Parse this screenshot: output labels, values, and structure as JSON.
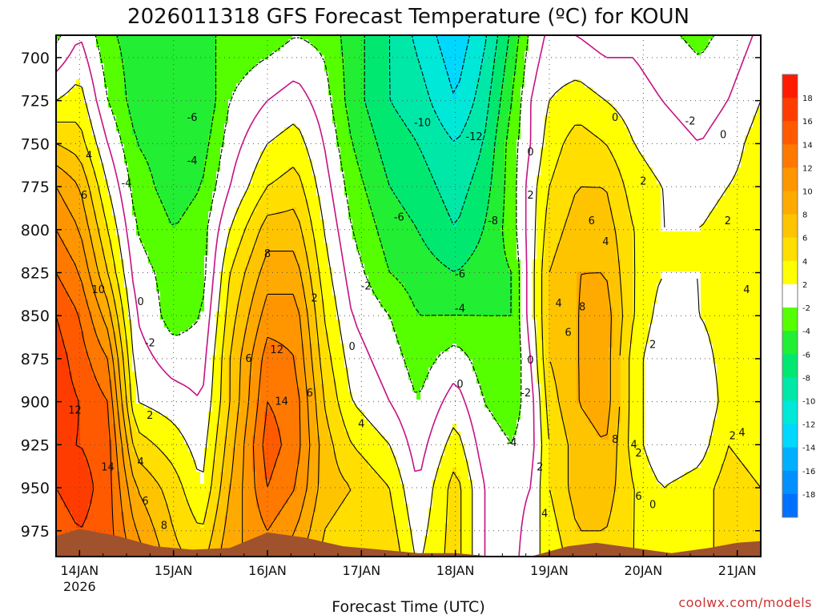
{
  "chart_data": {
    "type": "heatmap",
    "title": "2026011318 GFS Forecast Temperature (ºC) for KOUN",
    "xlabel": "Forecast Time (UTC)",
    "ylabel": "",
    "credit": "coolwx.com/models",
    "y_axis": {
      "ticks": [
        700,
        725,
        750,
        775,
        800,
        825,
        850,
        875,
        900,
        925,
        950,
        975
      ],
      "range": [
        687,
        990
      ],
      "unit": "hPa"
    },
    "x_axis": {
      "range_days": [
        -0.25,
        7.25
      ],
      "ticks": [
        {
          "day": 0,
          "label": "14JAN",
          "sublabel": "2026"
        },
        {
          "day": 1,
          "label": "15JAN",
          "sublabel": ""
        },
        {
          "day": 2,
          "label": "16JAN",
          "sublabel": ""
        },
        {
          "day": 3,
          "label": "17JAN",
          "sublabel": ""
        },
        {
          "day": 4,
          "label": "18JAN",
          "sublabel": ""
        },
        {
          "day": 5,
          "label": "19JAN",
          "sublabel": ""
        },
        {
          "day": 6,
          "label": "20JAN",
          "sublabel": ""
        },
        {
          "day": 7,
          "label": "21JAN",
          "sublabel": ""
        }
      ]
    },
    "colorbar": {
      "labels": [
        "18",
        "16",
        "14",
        "12",
        "10",
        "8",
        "6",
        "4",
        "2",
        "-2",
        "-4",
        "-6",
        "-8",
        "-10",
        "-12",
        "-14",
        "-16",
        "-18"
      ],
      "bins": [
        {
          "lo": 18,
          "hi": 20,
          "color": "#ff1a00"
        },
        {
          "lo": 16,
          "hi": 18,
          "color": "#ff3c00"
        },
        {
          "lo": 14,
          "hi": 16,
          "color": "#ff5a00"
        },
        {
          "lo": 12,
          "hi": 14,
          "color": "#ff7800"
        },
        {
          "lo": 10,
          "hi": 12,
          "color": "#ff9600"
        },
        {
          "lo": 8,
          "hi": 10,
          "color": "#ffaa00"
        },
        {
          "lo": 6,
          "hi": 8,
          "color": "#ffc400"
        },
        {
          "lo": 4,
          "hi": 6,
          "color": "#ffde00"
        },
        {
          "lo": 2,
          "hi": 4,
          "color": "#ffff00"
        },
        {
          "lo": -2,
          "hi": 2,
          "color": "#ffffff"
        },
        {
          "lo": -4,
          "hi": -2,
          "color": "#55ff00"
        },
        {
          "lo": -6,
          "hi": -4,
          "color": "#22ee33"
        },
        {
          "lo": -8,
          "hi": -6,
          "color": "#00e870"
        },
        {
          "lo": -10,
          "hi": -8,
          "color": "#00e8a8"
        },
        {
          "lo": -12,
          "hi": -10,
          "color": "#00e8d8"
        },
        {
          "lo": -14,
          "hi": -12,
          "color": "#00d8ff"
        },
        {
          "lo": -16,
          "hi": -14,
          "color": "#00b0ff"
        },
        {
          "lo": -18,
          "hi": -16,
          "color": "#0090ff"
        },
        {
          "lo": -20,
          "hi": -18,
          "color": "#0070ff"
        }
      ]
    },
    "surface_color": "#a0522d",
    "positive_contour_color": "#000000",
    "zero_contour_color": "#c71585",
    "negative_contour_color": "#000000",
    "surface_pressure": [
      {
        "day": -0.25,
        "p": 978
      },
      {
        "day": 0.0,
        "p": 974
      },
      {
        "day": 0.4,
        "p": 978
      },
      {
        "day": 0.8,
        "p": 984
      },
      {
        "day": 1.2,
        "p": 986
      },
      {
        "day": 1.6,
        "p": 985
      },
      {
        "day": 2.0,
        "p": 976
      },
      {
        "day": 2.4,
        "p": 979
      },
      {
        "day": 2.8,
        "p": 984
      },
      {
        "day": 3.2,
        "p": 986
      },
      {
        "day": 3.6,
        "p": 988
      },
      {
        "day": 4.0,
        "p": 988
      },
      {
        "day": 4.4,
        "p": 990
      },
      {
        "day": 4.8,
        "p": 990
      },
      {
        "day": 5.2,
        "p": 984
      },
      {
        "day": 5.5,
        "p": 982
      },
      {
        "day": 5.9,
        "p": 985
      },
      {
        "day": 6.3,
        "p": 988
      },
      {
        "day": 6.7,
        "p": 985
      },
      {
        "day": 7.0,
        "p": 982
      },
      {
        "day": 7.25,
        "p": 981
      }
    ],
    "profiles": [
      {
        "day": -0.25,
        "t": [
          -1,
          2,
          6,
          10,
          12,
          14,
          16,
          17,
          17,
          16,
          16,
          15
        ]
      },
      {
        "day": 0.0,
        "t": [
          1,
          3,
          5,
          8,
          10,
          12,
          14,
          15,
          16,
          16,
          17,
          16
        ]
      },
      {
        "day": 0.3,
        "t": [
          -3,
          -2,
          0,
          2,
          4,
          6,
          9,
          12,
          14,
          15,
          15,
          15
        ]
      },
      {
        "day": 0.6,
        "t": [
          -5,
          -5,
          -4,
          -3,
          -2,
          -1,
          0,
          1,
          2,
          5,
          8,
          10
        ]
      },
      {
        "day": 1.0,
        "t": [
          -6,
          -6,
          -5,
          -5,
          -4,
          -3,
          -3,
          -1,
          1,
          3,
          5,
          6
        ]
      },
      {
        "day": 1.3,
        "t": [
          -5,
          -6,
          -5,
          -4,
          -3,
          -3,
          -2,
          -1,
          0,
          1,
          2,
          4
        ]
      },
      {
        "day": 1.6,
        "t": [
          -3,
          -2,
          -1,
          0,
          2,
          4,
          5,
          6,
          6,
          7,
          8,
          9
        ]
      },
      {
        "day": 2.0,
        "t": [
          -2,
          0,
          2,
          4,
          7,
          9,
          11,
          13,
          14,
          15,
          14,
          12
        ]
      },
      {
        "day": 2.3,
        "t": [
          -1,
          1,
          3,
          5,
          7,
          9,
          11,
          12,
          13,
          13,
          12,
          10
        ]
      },
      {
        "day": 2.6,
        "t": [
          -2,
          -1,
          0,
          1,
          2,
          3,
          4,
          5,
          6,
          7,
          7,
          6
        ]
      },
      {
        "day": 2.9,
        "t": [
          -5,
          -5,
          -4,
          -3,
          -2,
          -1,
          0,
          1,
          2,
          4,
          6,
          5
        ]
      },
      {
        "day": 3.3,
        "t": [
          -8,
          -8,
          -7,
          -6,
          -5,
          -4,
          -2,
          -1,
          0,
          2,
          4,
          5
        ]
      },
      {
        "day": 3.6,
        "t": [
          -10,
          -9,
          -8,
          -7,
          -6,
          -5,
          -4,
          -3,
          -2,
          -1,
          0,
          1
        ]
      },
      {
        "day": 4.0,
        "t": [
          -13,
          -12,
          -10,
          -9,
          -8,
          -6,
          -4,
          -1,
          1,
          3,
          5,
          5
        ]
      },
      {
        "day": 4.3,
        "t": [
          -10,
          -9,
          -8,
          -7,
          -6,
          -5,
          -4,
          -3,
          -2,
          -1,
          0,
          0
        ]
      },
      {
        "day": 4.6,
        "t": [
          -5,
          -4,
          -3,
          -3,
          -3,
          -4,
          -4,
          -4,
          -3,
          -2,
          -1,
          -1
        ]
      },
      {
        "day": 4.8,
        "t": [
          -1,
          0,
          0,
          1,
          1,
          1,
          1,
          0,
          -1,
          -1,
          0,
          1
        ]
      },
      {
        "day": 5.0,
        "t": [
          1,
          2,
          3,
          4,
          5,
          6,
          6,
          6,
          5,
          4,
          4,
          3
        ]
      },
      {
        "day": 5.3,
        "t": [
          1,
          3,
          5,
          6,
          7,
          8,
          8,
          8,
          8,
          7,
          7,
          6
        ]
      },
      {
        "day": 5.6,
        "t": [
          0,
          2,
          4,
          6,
          7,
          8,
          9,
          9,
          9,
          8,
          7,
          6
        ]
      },
      {
        "day": 5.9,
        "t": [
          0,
          1,
          2,
          3,
          4,
          4,
          4,
          3,
          3,
          3,
          4,
          4
        ]
      },
      {
        "day": 6.2,
        "t": [
          -1,
          0,
          1,
          2,
          2,
          2,
          1,
          0,
          0,
          0,
          2,
          2
        ]
      },
      {
        "day": 6.6,
        "t": [
          -2,
          -1,
          0,
          1,
          2,
          2,
          2,
          1,
          0,
          1,
          3,
          3
        ]
      },
      {
        "day": 6.9,
        "t": [
          -1,
          0,
          1,
          2,
          3,
          3,
          3,
          3,
          3,
          4,
          5,
          5
        ]
      },
      {
        "day": 7.25,
        "t": [
          1,
          2,
          3,
          3,
          3,
          4,
          4,
          4,
          3,
          3,
          4,
          5
        ]
      }
    ],
    "contour_labels": [
      {
        "day": -0.05,
        "p": 905,
        "text": "12"
      },
      {
        "day": 0.3,
        "p": 938,
        "text": "14"
      },
      {
        "day": 0.05,
        "p": 780,
        "text": "6"
      },
      {
        "day": 0.2,
        "p": 835,
        "text": "10"
      },
      {
        "day": 0.1,
        "p": 757,
        "text": "4"
      },
      {
        "day": 0.65,
        "p": 842,
        "text": "0"
      },
      {
        "day": 0.75,
        "p": 866,
        "text": "-2"
      },
      {
        "day": 0.5,
        "p": 773,
        "text": "-4"
      },
      {
        "day": 1.2,
        "p": 760,
        "text": "-4"
      },
      {
        "day": 1.2,
        "p": 735,
        "text": "-6"
      },
      {
        "day": 0.75,
        "p": 908,
        "text": "2"
      },
      {
        "day": 0.65,
        "p": 935,
        "text": "4"
      },
      {
        "day": 0.7,
        "p": 958,
        "text": "6"
      },
      {
        "day": 0.9,
        "p": 972,
        "text": "8"
      },
      {
        "day": 2.0,
        "p": 814,
        "text": "8"
      },
      {
        "day": 2.1,
        "p": 870,
        "text": "12"
      },
      {
        "day": 2.15,
        "p": 900,
        "text": "14"
      },
      {
        "day": 1.8,
        "p": 875,
        "text": "6"
      },
      {
        "day": 2.5,
        "p": 840,
        "text": "2"
      },
      {
        "day": 2.45,
        "p": 895,
        "text": "6"
      },
      {
        "day": 2.9,
        "p": 868,
        "text": "0"
      },
      {
        "day": 3.0,
        "p": 913,
        "text": "4"
      },
      {
        "day": 3.05,
        "p": 833,
        "text": "-2"
      },
      {
        "day": 3.4,
        "p": 793,
        "text": "-6"
      },
      {
        "day": 3.65,
        "p": 738,
        "text": "-10"
      },
      {
        "day": 4.2,
        "p": 746,
        "text": "-12"
      },
      {
        "day": 4.4,
        "p": 795,
        "text": "-8"
      },
      {
        "day": 4.05,
        "p": 826,
        "text": "-6"
      },
      {
        "day": 4.05,
        "p": 846,
        "text": "-4"
      },
      {
        "day": 4.05,
        "p": 890,
        "text": "0"
      },
      {
        "day": 4.75,
        "p": 895,
        "text": "-2"
      },
      {
        "day": 4.6,
        "p": 924,
        "text": "-4"
      },
      {
        "day": 4.8,
        "p": 755,
        "text": "0"
      },
      {
        "day": 4.8,
        "p": 780,
        "text": "2"
      },
      {
        "day": 4.8,
        "p": 876,
        "text": "0"
      },
      {
        "day": 4.9,
        "p": 938,
        "text": "2"
      },
      {
        "day": 4.95,
        "p": 965,
        "text": "4"
      },
      {
        "day": 5.1,
        "p": 843,
        "text": "4"
      },
      {
        "day": 5.2,
        "p": 860,
        "text": "6"
      },
      {
        "day": 5.45,
        "p": 795,
        "text": "6"
      },
      {
        "day": 5.35,
        "p": 845,
        "text": "8"
      },
      {
        "day": 5.6,
        "p": 807,
        "text": "4"
      },
      {
        "day": 5.7,
        "p": 922,
        "text": "8"
      },
      {
        "day": 5.9,
        "p": 925,
        "text": "4"
      },
      {
        "day": 5.95,
        "p": 930,
        "text": "2"
      },
      {
        "day": 5.95,
        "p": 955,
        "text": "6"
      },
      {
        "day": 6.1,
        "p": 960,
        "text": "0"
      },
      {
        "day": 6.1,
        "p": 867,
        "text": "2"
      },
      {
        "day": 5.7,
        "p": 735,
        "text": "0"
      },
      {
        "day": 6.0,
        "p": 772,
        "text": "2"
      },
      {
        "day": 6.5,
        "p": 737,
        "text": "-2"
      },
      {
        "day": 6.85,
        "p": 745,
        "text": "0"
      },
      {
        "day": 6.9,
        "p": 795,
        "text": "2"
      },
      {
        "day": 7.1,
        "p": 835,
        "text": "4"
      },
      {
        "day": 6.95,
        "p": 920,
        "text": "2"
      },
      {
        "day": 7.05,
        "p": 918,
        "text": "4"
      }
    ]
  }
}
